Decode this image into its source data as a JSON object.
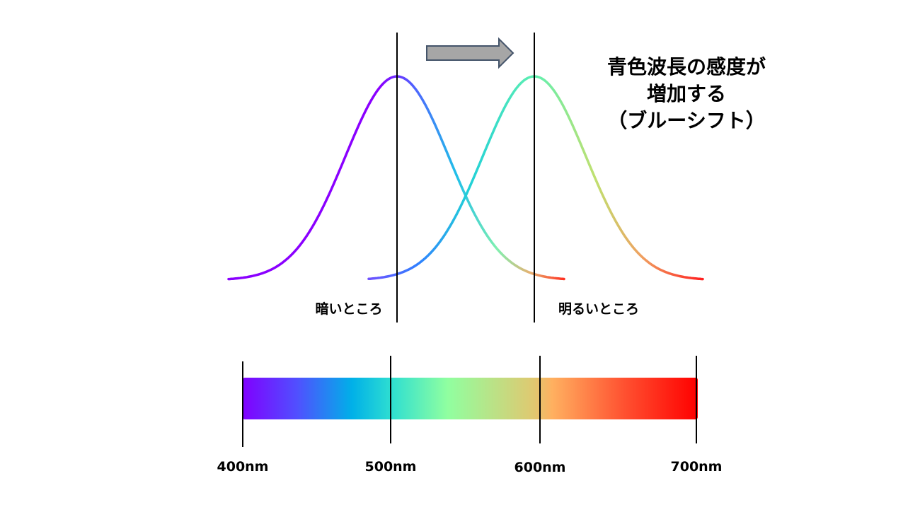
{
  "headline": {
    "line1": "青色波長の感度が",
    "line2": "増加する",
    "line3": "（ブルーシフト）"
  },
  "curve_labels": {
    "dark": "暗いところ",
    "bright": "明るいところ"
  },
  "wavelength_ticks": [
    "400nm",
    "500nm",
    "600nm",
    "700nm"
  ],
  "colors": {
    "arrow_fill": "#a6a6a6",
    "arrow_stroke": "#44546a",
    "spectrum_stops": [
      "#8000ff",
      "#5050ff",
      "#00b0e8",
      "#30e0d0",
      "#90ffa0",
      "#e0c870",
      "#ffb060",
      "#ff5030",
      "#ff0000"
    ]
  },
  "icons": {
    "shift_arrow": "right-arrow-icon"
  }
}
